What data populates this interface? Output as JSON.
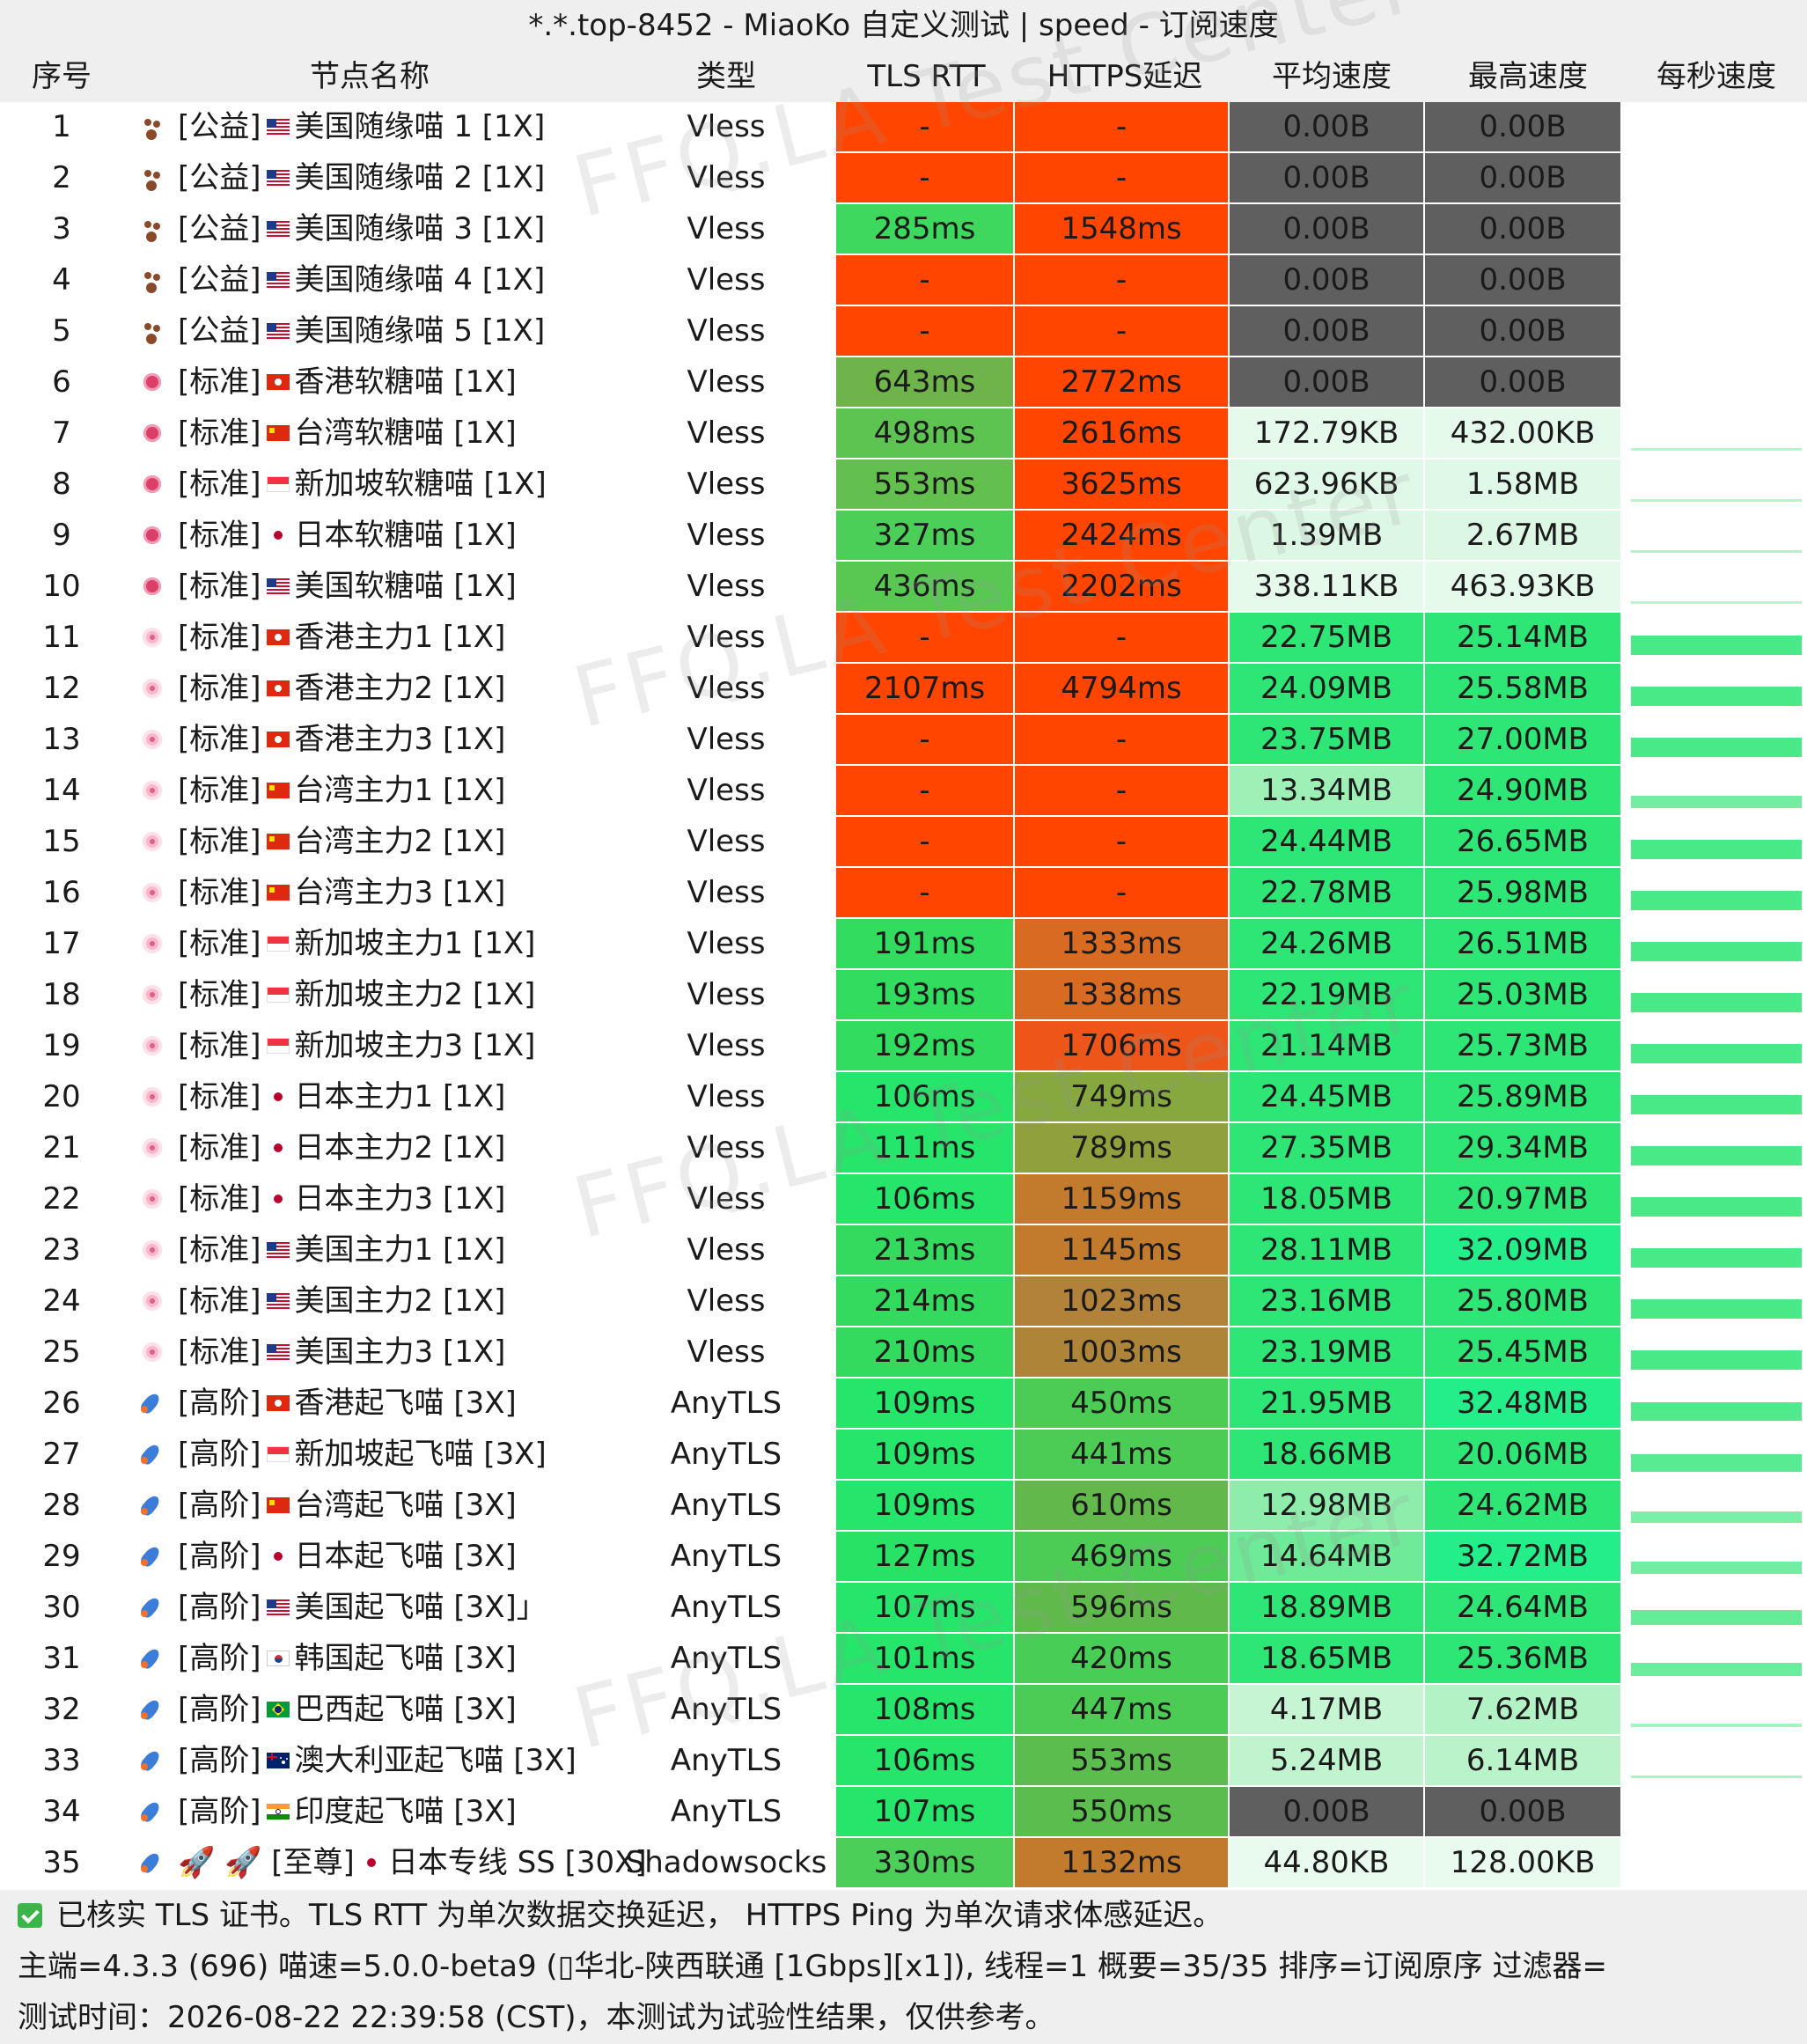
{
  "title": "*.*.top-8452 - MiaoKo 自定义测试 | speed - 订阅速度",
  "watermark": "FFQ.LA Test Center",
  "columns": {
    "idx": "序号",
    "name": "节点名称",
    "type": "类型",
    "tls": "TLS RTT",
    "https": "HTTPS延迟",
    "avg": "平均速度",
    "max": "最高速度",
    "spark": "每秒速度"
  },
  "colors": {
    "red": "#ff4500",
    "gray": "#5f5f5f",
    "green_bright": "#22e06c",
    "green_mid": "#55cc55",
    "green_olive": "#7fb04a",
    "orange_brown": "#c8742a",
    "olive_brown": "#a98a3a",
    "light_green": "#d8f8e2",
    "pale_green": "#b8f2c9"
  },
  "rows": [
    {
      "idx": "1",
      "icon": "paw-icon",
      "prefix": "[公益]",
      "flag": "us",
      "name": "美国随缘喵 1 [1X]",
      "type": "Vless",
      "tls": "-",
      "https": "-",
      "avg": "0.00B",
      "max": "0.00B",
      "tls_c": "#ff4500",
      "https_c": "#ff4500",
      "avg_c": "#5f5f5f",
      "max_c": "#5f5f5f",
      "spark": 0
    },
    {
      "idx": "2",
      "icon": "paw-icon",
      "prefix": "[公益]",
      "flag": "us",
      "name": "美国随缘喵 2 [1X]",
      "type": "Vless",
      "tls": "-",
      "https": "-",
      "avg": "0.00B",
      "max": "0.00B",
      "tls_c": "#ff4500",
      "https_c": "#ff4500",
      "avg_c": "#5f5f5f",
      "max_c": "#5f5f5f",
      "spark": 0
    },
    {
      "idx": "3",
      "icon": "paw-icon",
      "prefix": "[公益]",
      "flag": "us",
      "name": "美国随缘喵 3 [1X]",
      "type": "Vless",
      "tls": "285ms",
      "https": "1548ms",
      "avg": "0.00B",
      "max": "0.00B",
      "tls_c": "#3ed85f",
      "https_c": "#ff4500",
      "avg_c": "#5f5f5f",
      "max_c": "#5f5f5f",
      "spark": 0
    },
    {
      "idx": "4",
      "icon": "paw-icon",
      "prefix": "[公益]",
      "flag": "us",
      "name": "美国随缘喵 4 [1X]",
      "type": "Vless",
      "tls": "-",
      "https": "-",
      "avg": "0.00B",
      "max": "0.00B",
      "tls_c": "#ff4500",
      "https_c": "#ff4500",
      "avg_c": "#5f5f5f",
      "max_c": "#5f5f5f",
      "spark": 0
    },
    {
      "idx": "5",
      "icon": "paw-icon",
      "prefix": "[公益]",
      "flag": "us",
      "name": "美国随缘喵 5 [1X]",
      "type": "Vless",
      "tls": "-",
      "https": "-",
      "avg": "0.00B",
      "max": "0.00B",
      "tls_c": "#ff4500",
      "https_c": "#ff4500",
      "avg_c": "#5f5f5f",
      "max_c": "#5f5f5f",
      "spark": 0
    },
    {
      "idx": "6",
      "icon": "candy-icon",
      "prefix": "[标准]",
      "flag": "hk",
      "name": "香港软糖喵 [1X]",
      "type": "Vless",
      "tls": "643ms",
      "https": "2772ms",
      "avg": "0.00B",
      "max": "0.00B",
      "tls_c": "#6fb44a",
      "https_c": "#ff4500",
      "avg_c": "#5f5f5f",
      "max_c": "#5f5f5f",
      "spark": 0
    },
    {
      "idx": "7",
      "icon": "candy-icon",
      "prefix": "[标准]",
      "flag": "cn",
      "name": "台湾软糖喵 [1X]",
      "type": "Vless",
      "tls": "498ms",
      "https": "2616ms",
      "avg": "172.79KB",
      "max": "432.00KB",
      "tls_c": "#5ec451",
      "https_c": "#ff4500",
      "avg_c": "#e6faec",
      "max_c": "#e6faec",
      "spark": 0.02
    },
    {
      "idx": "8",
      "icon": "candy-icon",
      "prefix": "[标准]",
      "flag": "sg",
      "name": "新加坡软糖喵 [1X]",
      "type": "Vless",
      "tls": "553ms",
      "https": "3625ms",
      "avg": "623.96KB",
      "max": "1.58MB",
      "tls_c": "#63c04e",
      "https_c": "#ff4500",
      "avg_c": "#e0f8e7",
      "max_c": "#e0f8e7",
      "spark": 0.03
    },
    {
      "idx": "9",
      "icon": "candy-icon",
      "prefix": "[标准]",
      "flag": "jp",
      "name": "日本软糖喵 [1X]",
      "type": "Vless",
      "tls": "327ms",
      "https": "2424ms",
      "avg": "1.39MB",
      "max": "2.67MB",
      "tls_c": "#4ccf58",
      "https_c": "#ff4500",
      "avg_c": "#dcf7e4",
      "max_c": "#dcf7e4",
      "spark": 0.05
    },
    {
      "idx": "10",
      "icon": "candy-icon",
      "prefix": "[标准]",
      "flag": "us",
      "name": "美国软糖喵 [1X]",
      "type": "Vless",
      "tls": "436ms",
      "https": "2202ms",
      "avg": "338.11KB",
      "max": "463.93KB",
      "tls_c": "#58c853",
      "https_c": "#ff4500",
      "avg_c": "#e6faec",
      "max_c": "#e6faec",
      "spark": 0.02
    },
    {
      "idx": "11",
      "icon": "flower-icon",
      "prefix": "[标准]",
      "flag": "hk",
      "name": "香港主力1 [1X]",
      "type": "Vless",
      "tls": "-",
      "https": "-",
      "avg": "22.75MB",
      "max": "25.14MB",
      "tls_c": "#ff4500",
      "https_c": "#ff4500",
      "avg_c": "#2ee676",
      "max_c": "#2ee676",
      "spark": 0.8
    },
    {
      "idx": "12",
      "icon": "flower-icon",
      "prefix": "[标准]",
      "flag": "hk",
      "name": "香港主力2 [1X]",
      "type": "Vless",
      "tls": "2107ms",
      "https": "4794ms",
      "avg": "24.09MB",
      "max": "25.58MB",
      "tls_c": "#ff4500",
      "https_c": "#ff4500",
      "avg_c": "#2ee676",
      "max_c": "#2ee676",
      "spark": 0.8
    },
    {
      "idx": "13",
      "icon": "flower-icon",
      "prefix": "[标准]",
      "flag": "hk",
      "name": "香港主力3 [1X]",
      "type": "Vless",
      "tls": "-",
      "https": "-",
      "avg": "23.75MB",
      "max": "27.00MB",
      "tls_c": "#ff4500",
      "https_c": "#ff4500",
      "avg_c": "#2ee676",
      "max_c": "#2ee676",
      "spark": 0.8
    },
    {
      "idx": "14",
      "icon": "flower-icon",
      "prefix": "[标准]",
      "flag": "cn",
      "name": "台湾主力1 [1X]",
      "type": "Vless",
      "tls": "-",
      "https": "-",
      "avg": "13.34MB",
      "max": "24.90MB",
      "tls_c": "#ff4500",
      "https_c": "#ff4500",
      "avg_c": "#9ef0b6",
      "max_c": "#2ee676",
      "spark": 0.5
    },
    {
      "idx": "15",
      "icon": "flower-icon",
      "prefix": "[标准]",
      "flag": "cn",
      "name": "台湾主力2 [1X]",
      "type": "Vless",
      "tls": "-",
      "https": "-",
      "avg": "24.44MB",
      "max": "26.65MB",
      "tls_c": "#ff4500",
      "https_c": "#ff4500",
      "avg_c": "#2ee676",
      "max_c": "#2ee676",
      "spark": 0.8
    },
    {
      "idx": "16",
      "icon": "flower-icon",
      "prefix": "[标准]",
      "flag": "cn",
      "name": "台湾主力3 [1X]",
      "type": "Vless",
      "tls": "-",
      "https": "-",
      "avg": "22.78MB",
      "max": "25.98MB",
      "tls_c": "#ff4500",
      "https_c": "#ff4500",
      "avg_c": "#2ee676",
      "max_c": "#2ee676",
      "spark": 0.8
    },
    {
      "idx": "17",
      "icon": "flower-icon",
      "prefix": "[标准]",
      "flag": "sg",
      "name": "新加坡主力1  [1X]",
      "type": "Vless",
      "tls": "191ms",
      "https": "1333ms",
      "avg": "24.26MB",
      "max": "26.51MB",
      "tls_c": "#32dc5e",
      "https_c": "#d96a22",
      "avg_c": "#2ee676",
      "max_c": "#2ee676",
      "spark": 0.8
    },
    {
      "idx": "18",
      "icon": "flower-icon",
      "prefix": "[标准]",
      "flag": "sg",
      "name": "新加坡主力2 [1X]",
      "type": "Vless",
      "tls": "193ms",
      "https": "1338ms",
      "avg": "22.19MB",
      "max": "25.03MB",
      "tls_c": "#32dc5e",
      "https_c": "#d96a22",
      "avg_c": "#2ee676",
      "max_c": "#2ee676",
      "spark": 0.8
    },
    {
      "idx": "19",
      "icon": "flower-icon",
      "prefix": "[标准]",
      "flag": "sg",
      "name": "新加坡主力3 [1X]",
      "type": "Vless",
      "tls": "192ms",
      "https": "1706ms",
      "avg": "21.14MB",
      "max": "25.73MB",
      "tls_c": "#32dc5e",
      "https_c": "#ee5518",
      "avg_c": "#2ee676",
      "max_c": "#2ee676",
      "spark": 0.8
    },
    {
      "idx": "20",
      "icon": "flower-icon",
      "prefix": "[标准]",
      "flag": "jp",
      "name": "日本主力1 [1X]",
      "type": "Vless",
      "tls": "106ms",
      "https": "749ms",
      "avg": "24.45MB",
      "max": "25.89MB",
      "tls_c": "#25e66a",
      "https_c": "#86a83e",
      "avg_c": "#2ee676",
      "max_c": "#2ee676",
      "spark": 0.8
    },
    {
      "idx": "21",
      "icon": "flower-icon",
      "prefix": "[标准]",
      "flag": "jp",
      "name": "日本主力2 [1X]",
      "type": "Vless",
      "tls": "111ms",
      "https": "789ms",
      "avg": "27.35MB",
      "max": "29.34MB",
      "tls_c": "#25e66a",
      "https_c": "#8fa03c",
      "avg_c": "#2ee676",
      "max_c": "#2ee676",
      "spark": 0.8
    },
    {
      "idx": "22",
      "icon": "flower-icon",
      "prefix": "[标准]",
      "flag": "jp",
      "name": "日本主力3 [1X]",
      "type": "Vless",
      "tls": "106ms",
      "https": "1159ms",
      "avg": "18.05MB",
      "max": "20.97MB",
      "tls_c": "#25e66a",
      "https_c": "#c27a2c",
      "avg_c": "#2ee676",
      "max_c": "#2ee676",
      "spark": 0.8
    },
    {
      "idx": "23",
      "icon": "flower-icon",
      "prefix": "[标准]",
      "flag": "us",
      "name": "美国主力1 [1X]",
      "type": "Vless",
      "tls": "213ms",
      "https": "1145ms",
      "avg": "28.11MB",
      "max": "32.09MB",
      "tls_c": "#34da5d",
      "https_c": "#c27a2c",
      "avg_c": "#2ee676",
      "max_c": "#24ee8a",
      "spark": 0.8
    },
    {
      "idx": "24",
      "icon": "flower-icon",
      "prefix": "[标准]",
      "flag": "us",
      "name": "美国主力2 [1X]",
      "type": "Vless",
      "tls": "214ms",
      "https": "1023ms",
      "avg": "23.16MB",
      "max": "25.80MB",
      "tls_c": "#34da5d",
      "https_c": "#b2823a",
      "avg_c": "#2ee676",
      "max_c": "#2ee676",
      "spark": 0.8
    },
    {
      "idx": "25",
      "icon": "flower-icon",
      "prefix": "[标准]",
      "flag": "us",
      "name": "美国主力3 [1X]",
      "type": "Vless",
      "tls": "210ms",
      "https": "1003ms",
      "avg": "23.19MB",
      "max": "25.45MB",
      "tls_c": "#34da5d",
      "https_c": "#ae8438",
      "avg_c": "#2ee676",
      "max_c": "#2ee676",
      "spark": 0.8
    },
    {
      "idx": "26",
      "icon": "rocket-icon",
      "prefix": "[高阶]",
      "flag": "hk",
      "name": "香港起飞喵 [3X]",
      "type": "AnyTLS",
      "tls": "109ms",
      "https": "450ms",
      "avg": "21.95MB",
      "max": "32.48MB",
      "tls_c": "#25e66a",
      "https_c": "#4ccc55",
      "avg_c": "#2ee676",
      "max_c": "#24ee8a",
      "spark": 0.75
    },
    {
      "idx": "27",
      "icon": "rocket-icon",
      "prefix": "[高阶]",
      "flag": "sg",
      "name": "新加坡起飞喵 [3X]",
      "type": "AnyTLS",
      "tls": "109ms",
      "https": "441ms",
      "avg": "18.66MB",
      "max": "20.06MB",
      "tls_c": "#25e66a",
      "https_c": "#4ccc55",
      "avg_c": "#2ee676",
      "max_c": "#2ee676",
      "spark": 0.7
    },
    {
      "idx": "28",
      "icon": "rocket-icon",
      "prefix": "[高阶]",
      "flag": "cn",
      "name": "台湾起飞喵 [3X]",
      "type": "AnyTLS",
      "tls": "109ms",
      "https": "610ms",
      "avg": "12.98MB",
      "max": "24.62MB",
      "tls_c": "#25e66a",
      "https_c": "#62b84a",
      "avg_c": "#8eedab",
      "max_c": "#2ee676",
      "spark": 0.45
    },
    {
      "idx": "29",
      "icon": "rocket-icon",
      "prefix": "[高阶]",
      "flag": "jp",
      "name": "日本起飞喵 [3X]",
      "type": "AnyTLS",
      "tls": "127ms",
      "https": "469ms",
      "avg": "14.64MB",
      "max": "32.72MB",
      "tls_c": "#28e266",
      "https_c": "#4ccc55",
      "avg_c": "#6fea98",
      "max_c": "#24ee8a",
      "spark": 0.5
    },
    {
      "idx": "30",
      "icon": "rocket-icon",
      "prefix": "[高阶]",
      "flag": "us",
      "name": "美国起飞喵 [3X]」",
      "type": "AnyTLS",
      "tls": "107ms",
      "https": "596ms",
      "avg": "18.89MB",
      "max": "24.64MB",
      "tls_c": "#25e66a",
      "https_c": "#60ba4b",
      "avg_c": "#2ee676",
      "max_c": "#2ee676",
      "spark": 0.6
    },
    {
      "idx": "31",
      "icon": "rocket-icon",
      "prefix": "[高阶]",
      "flag": "kr",
      "name": "韩国起飞喵 [3X]",
      "type": "AnyTLS",
      "tls": "101ms",
      "https": "420ms",
      "avg": "18.65MB",
      "max": "25.36MB",
      "tls_c": "#25e66a",
      "https_c": "#48ce56",
      "avg_c": "#2ee676",
      "max_c": "#2ee676",
      "spark": 0.55
    },
    {
      "idx": "32",
      "icon": "rocket-icon",
      "prefix": "[高阶]",
      "flag": "br",
      "name": "巴西起飞喵 [3X]",
      "type": "AnyTLS",
      "tls": "108ms",
      "https": "447ms",
      "avg": "4.17MB",
      "max": "7.62MB",
      "tls_c": "#25e66a",
      "https_c": "#4ccc55",
      "avg_c": "#c6f5d3",
      "max_c": "#b2f2c4",
      "spark": 0.15
    },
    {
      "idx": "33",
      "icon": "rocket-icon",
      "prefix": "[高阶]",
      "flag": "au",
      "name": "澳大利亚起飞喵 [3X]",
      "type": "AnyTLS",
      "tls": "106ms",
      "https": "553ms",
      "avg": "5.24MB",
      "max": "6.14MB",
      "tls_c": "#25e66a",
      "https_c": "#5abd4d",
      "avg_c": "#c0f4ce",
      "max_c": "#baf3c9",
      "spark": 0.12
    },
    {
      "idx": "34",
      "icon": "rocket-icon",
      "prefix": "[高阶]",
      "flag": "in",
      "name": "印度起飞喵 [3X]",
      "type": "AnyTLS",
      "tls": "107ms",
      "https": "550ms",
      "avg": "0.00B",
      "max": "0.00B",
      "tls_c": "#25e66a",
      "https_c": "#5abd4d",
      "avg_c": "#5f5f5f",
      "max_c": "#5f5f5f",
      "spark": 0
    },
    {
      "idx": "35",
      "icon": "rocket-icon",
      "prefix": "🚀 🚀 [至尊]",
      "flag": "jp",
      "name": "日本专线 SS [30X]",
      "type": "Shadowsocks",
      "tls": "330ms",
      "https": "1132ms",
      "avg": "44.80KB",
      "max": "128.00KB",
      "tls_c": "#4ccf58",
      "https_c": "#c27a2c",
      "avg_c": "#e8fbee",
      "max_c": "#e8fbee",
      "spark": 0
    }
  ],
  "footer": {
    "line1": "已核实 TLS 证书。TLS RTT 为单次数据交换延迟， HTTPS Ping 为单次请求体感延迟。",
    "line2": "主端=4.3.3 (696) 喵速=5.0.0-beta9 (▯华北-陕西联通 [1Gbps][x1]), 线程=1 概要=35/35 排序=订阅原序 过滤器=",
    "line3": "测试时间：2026-08-22 22:39:58 (CST)，本测试为试验性结果，仅供参考。"
  }
}
